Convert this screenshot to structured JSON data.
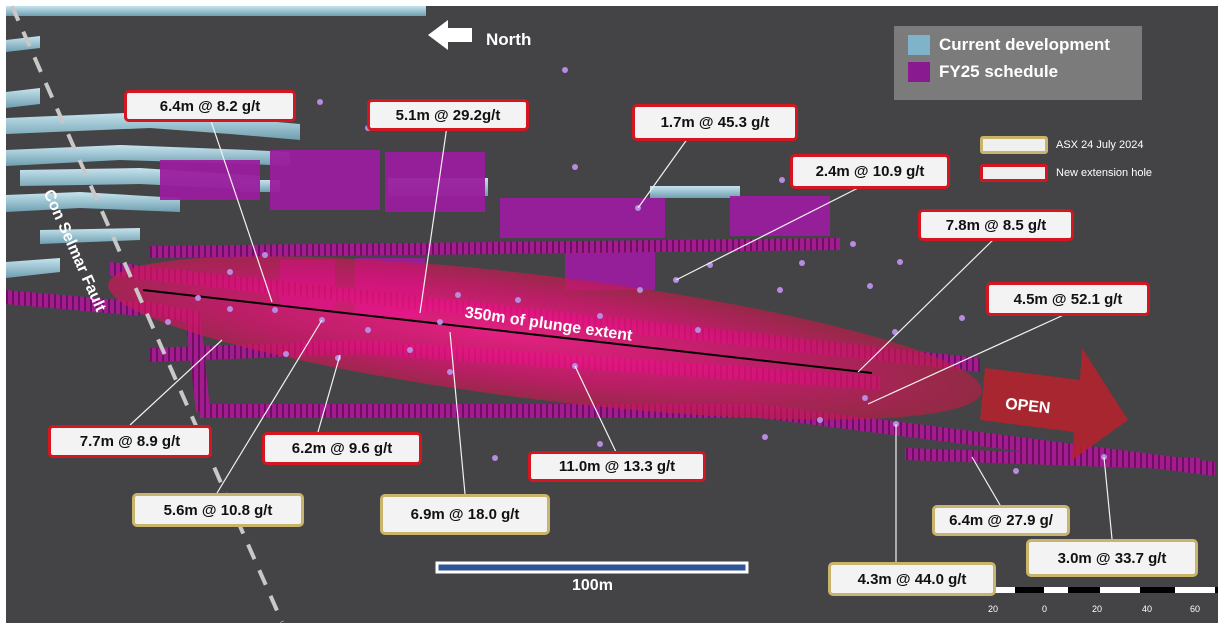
{
  "north": {
    "label": "North"
  },
  "legend": {
    "items": [
      {
        "label": "Current development",
        "color": "#7fb3c9"
      },
      {
        "label": "FY25 schedule",
        "color": "#8a1a8f"
      }
    ]
  },
  "key": {
    "items": [
      {
        "label": "ASX 24 July 2024",
        "border": "#c8b46a"
      },
      {
        "label": "New extension hole",
        "border": "#d51620"
      }
    ]
  },
  "annotations": {
    "fault": "Con Selmar Fault",
    "plunge": "350m of plunge extent",
    "open": "OPEN"
  },
  "scale": {
    "label": "100m",
    "ticks": [
      "20",
      "0",
      "20",
      "40",
      "60"
    ]
  },
  "intercepts": [
    {
      "text": "6.4m  @ 8.2 g/t",
      "style": "red"
    },
    {
      "text": "5.1m  @ 29.2g/t",
      "style": "red"
    },
    {
      "text": "1.7m  @ 45.3 g/t",
      "style": "red"
    },
    {
      "text": "2.4m  @ 10.9 g/t",
      "style": "red"
    },
    {
      "text": "7.8m  @ 8.5 g/t",
      "style": "red"
    },
    {
      "text": "4.5m  @ 52.1 g/t",
      "style": "red"
    },
    {
      "text": "7.7m  @ 8.9 g/t",
      "style": "red"
    },
    {
      "text": "6.2m  @ 9.6 g/t",
      "style": "red"
    },
    {
      "text": "11.0m  @ 13.3 g/t",
      "style": "red"
    },
    {
      "text": "5.6m @ 10.8 g/t",
      "style": "gold"
    },
    {
      "text": "6.9m @ 18.0 g/t",
      "style": "gold"
    },
    {
      "text": "6.4m @ 27.9 g/",
      "style": "gold"
    },
    {
      "text": "4.3m @ 44.0 g/t",
      "style": "gold"
    },
    {
      "text": "3.0m @ 33.7 g/t",
      "style": "gold"
    }
  ]
}
